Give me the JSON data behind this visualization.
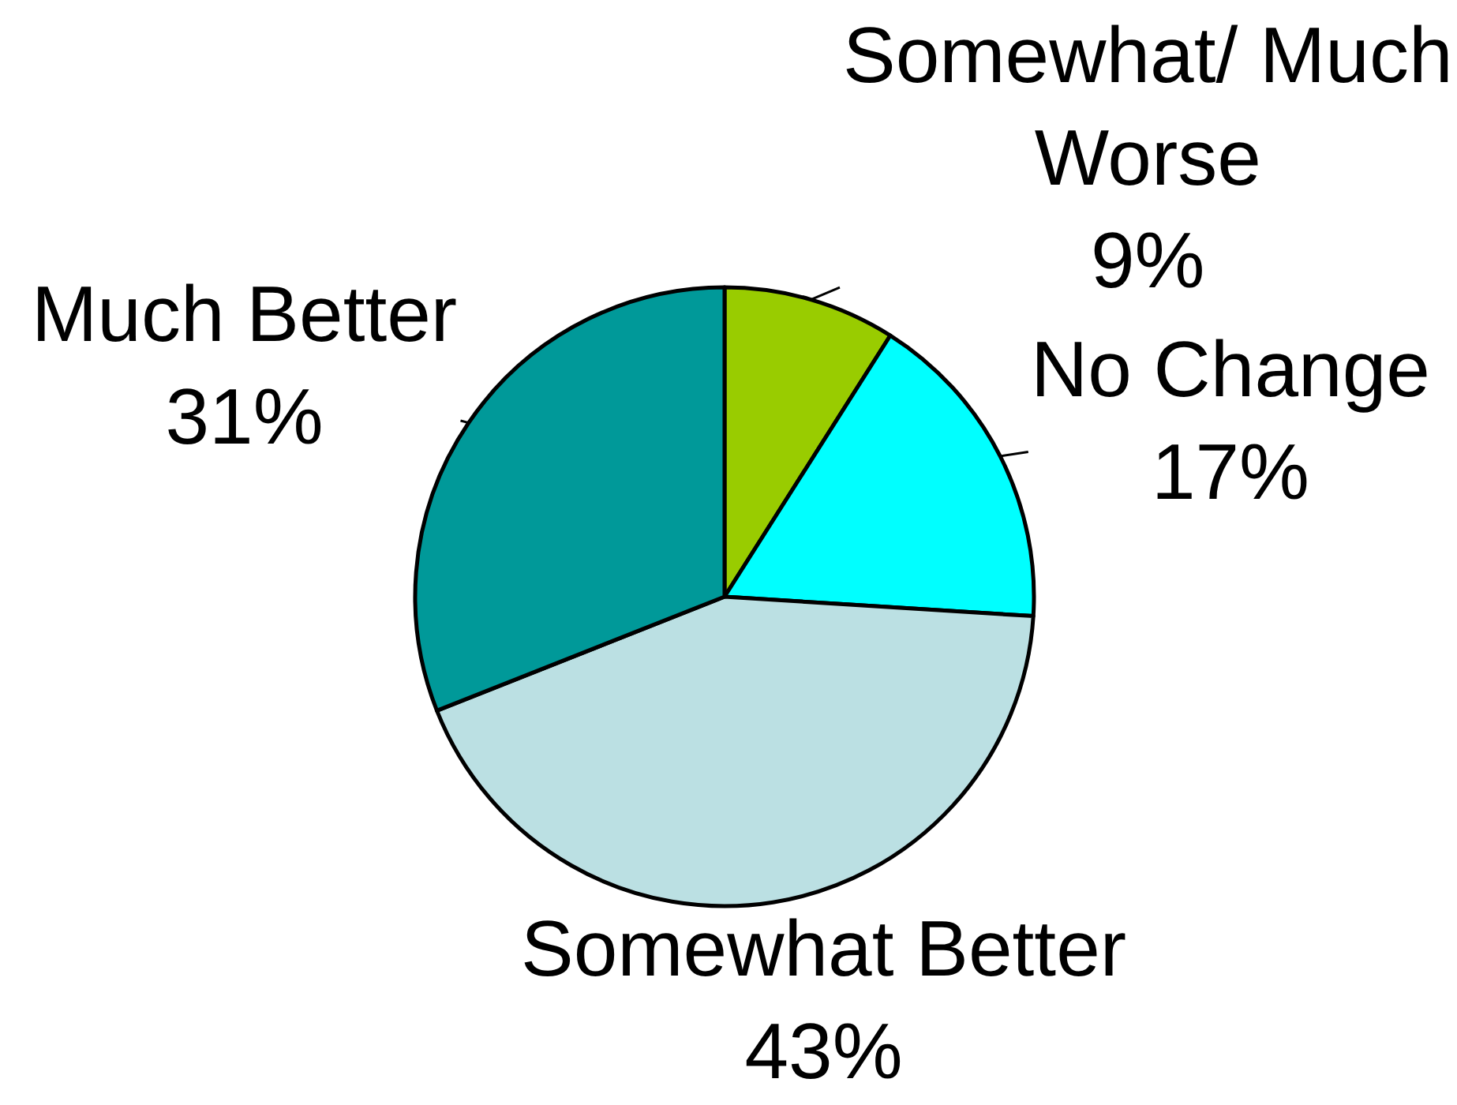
{
  "chart_data": {
    "type": "pie",
    "categories": [
      "Somewhat/ Much Worse",
      "No Change",
      "Somewhat Better",
      "Much Better"
    ],
    "values": [
      9,
      17,
      43,
      31
    ],
    "value_labels": [
      "9%",
      "17%",
      "43%",
      "31%"
    ],
    "colors": [
      "#99cc00",
      "#00ffff",
      "#bbe0e3",
      "#009999"
    ],
    "legend": false
  }
}
